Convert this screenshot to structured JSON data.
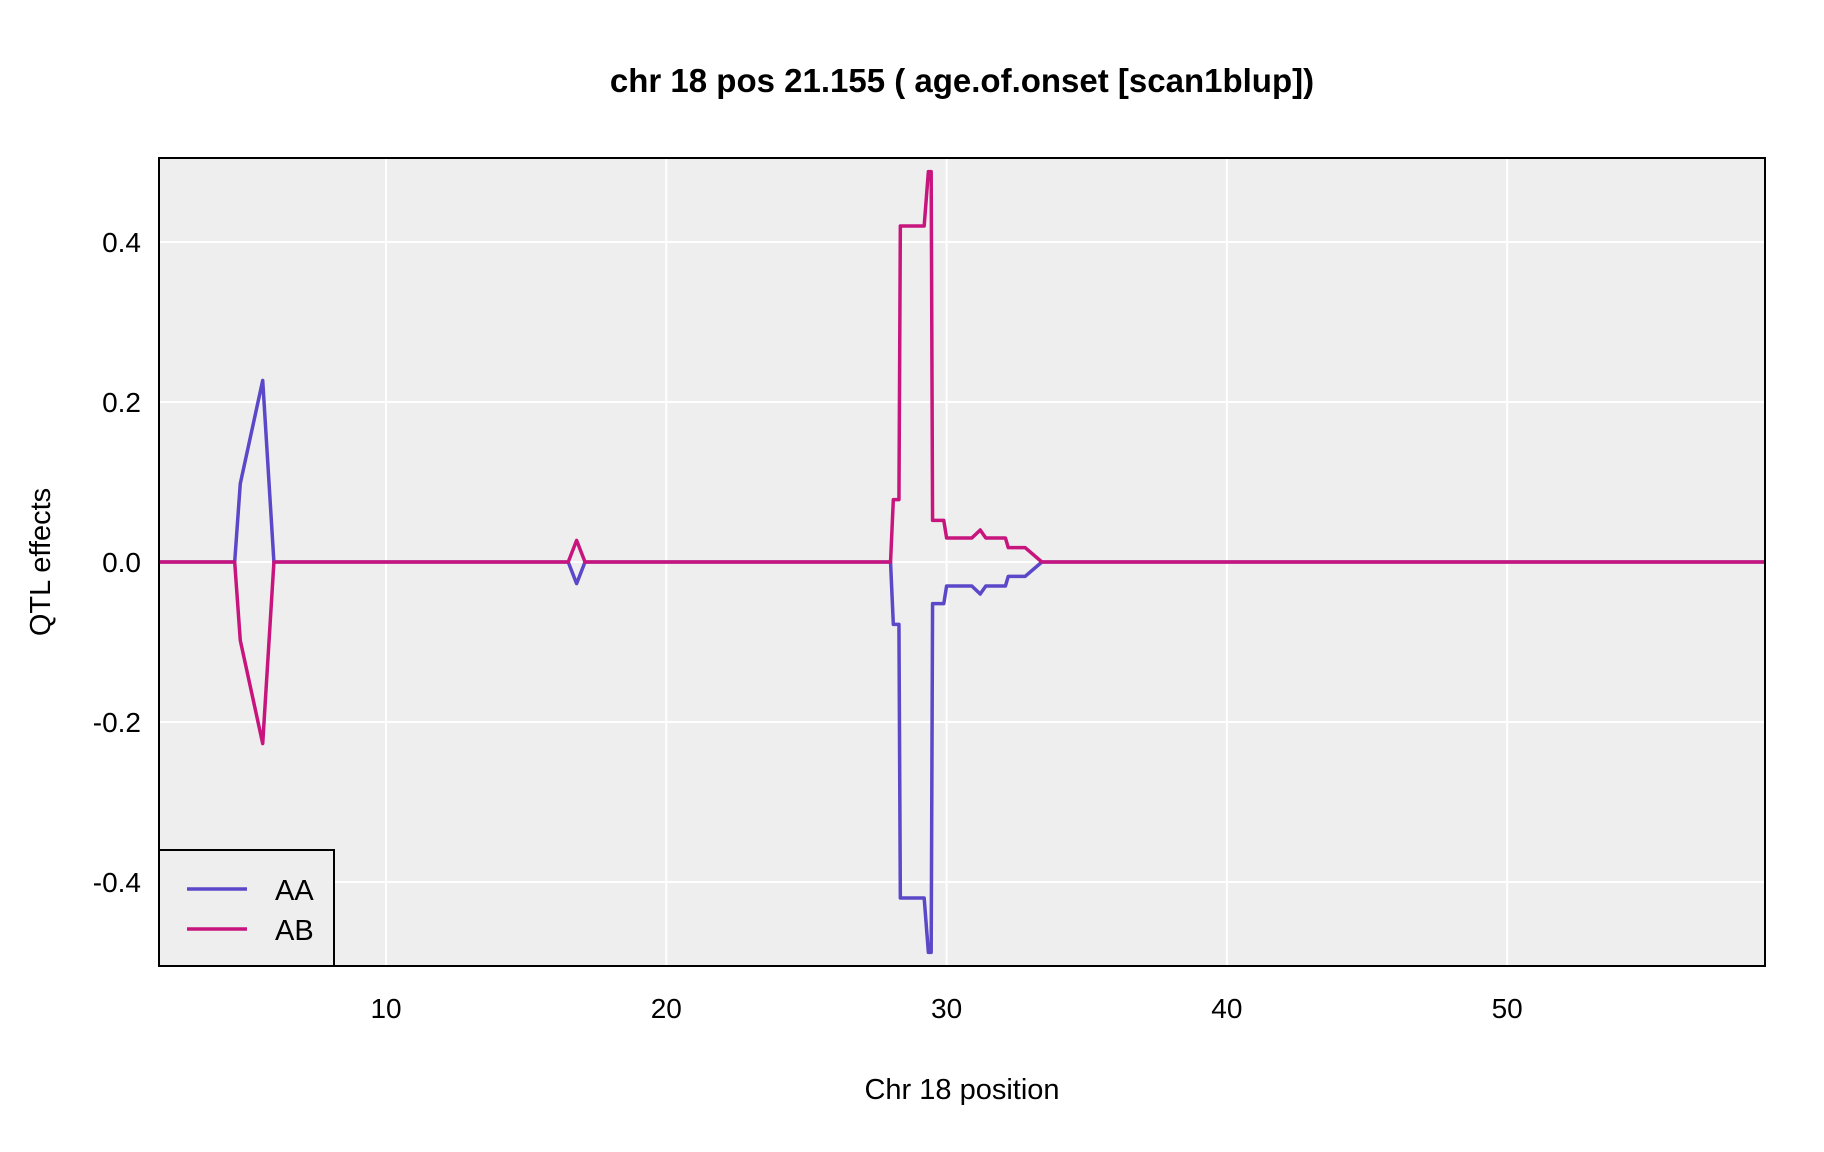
{
  "chart_data": {
    "type": "line",
    "title": "chr 18 pos 21.155 ( age.of.onset  [scan1blup])",
    "xlabel": "Chr 18 position",
    "ylabel": "QTL effects",
    "xlim": [
      1.9,
      59.2
    ],
    "ylim": [
      -0.505,
      0.505
    ],
    "xticks": [
      10,
      20,
      30,
      40,
      50
    ],
    "xtick_labels": [
      "10",
      "20",
      "30",
      "40",
      "50"
    ],
    "yticks": [
      -0.4,
      -0.2,
      0.0,
      0.2,
      0.4
    ],
    "ytick_labels": [
      "-0.4",
      "-0.2",
      "0.0",
      "0.2",
      "0.4"
    ],
    "grid": true,
    "legend_position": "bottom-left",
    "background_color": "#eeeeee",
    "series": [
      {
        "name": "AA",
        "color": "#5a48c8",
        "points": [
          [
            1.9,
            0.0
          ],
          [
            4.6,
            0.0
          ],
          [
            4.8,
            0.098
          ],
          [
            5.6,
            0.227
          ],
          [
            6.0,
            0.0
          ],
          [
            16.5,
            0.0
          ],
          [
            16.8,
            -0.027
          ],
          [
            17.1,
            0.0
          ],
          [
            28.0,
            0.0
          ],
          [
            28.1,
            -0.078
          ],
          [
            28.3,
            -0.078
          ],
          [
            28.35,
            -0.42
          ],
          [
            29.2,
            -0.42
          ],
          [
            29.35,
            -0.488
          ],
          [
            29.45,
            -0.488
          ],
          [
            29.5,
            -0.052
          ],
          [
            29.9,
            -0.052
          ],
          [
            30.0,
            -0.03
          ],
          [
            30.9,
            -0.03
          ],
          [
            31.2,
            -0.04
          ],
          [
            31.4,
            -0.03
          ],
          [
            32.1,
            -0.03
          ],
          [
            32.2,
            -0.018
          ],
          [
            32.8,
            -0.018
          ],
          [
            33.4,
            0.0
          ],
          [
            59.2,
            0.0
          ]
        ]
      },
      {
        "name": "AB",
        "color": "#c8157e",
        "points": [
          [
            1.9,
            0.0
          ],
          [
            4.6,
            0.0
          ],
          [
            4.8,
            -0.098
          ],
          [
            5.6,
            -0.227
          ],
          [
            6.0,
            0.0
          ],
          [
            16.5,
            0.0
          ],
          [
            16.8,
            0.027
          ],
          [
            17.1,
            0.0
          ],
          [
            28.0,
            0.0
          ],
          [
            28.1,
            0.078
          ],
          [
            28.3,
            0.078
          ],
          [
            28.35,
            0.42
          ],
          [
            29.2,
            0.42
          ],
          [
            29.35,
            0.488
          ],
          [
            29.45,
            0.488
          ],
          [
            29.5,
            0.052
          ],
          [
            29.9,
            0.052
          ],
          [
            30.0,
            0.03
          ],
          [
            30.9,
            0.03
          ],
          [
            31.2,
            0.04
          ],
          [
            31.4,
            0.03
          ],
          [
            32.1,
            0.03
          ],
          [
            32.2,
            0.018
          ],
          [
            32.8,
            0.018
          ],
          [
            33.4,
            0.0
          ],
          [
            59.2,
            0.0
          ]
        ]
      }
    ]
  }
}
